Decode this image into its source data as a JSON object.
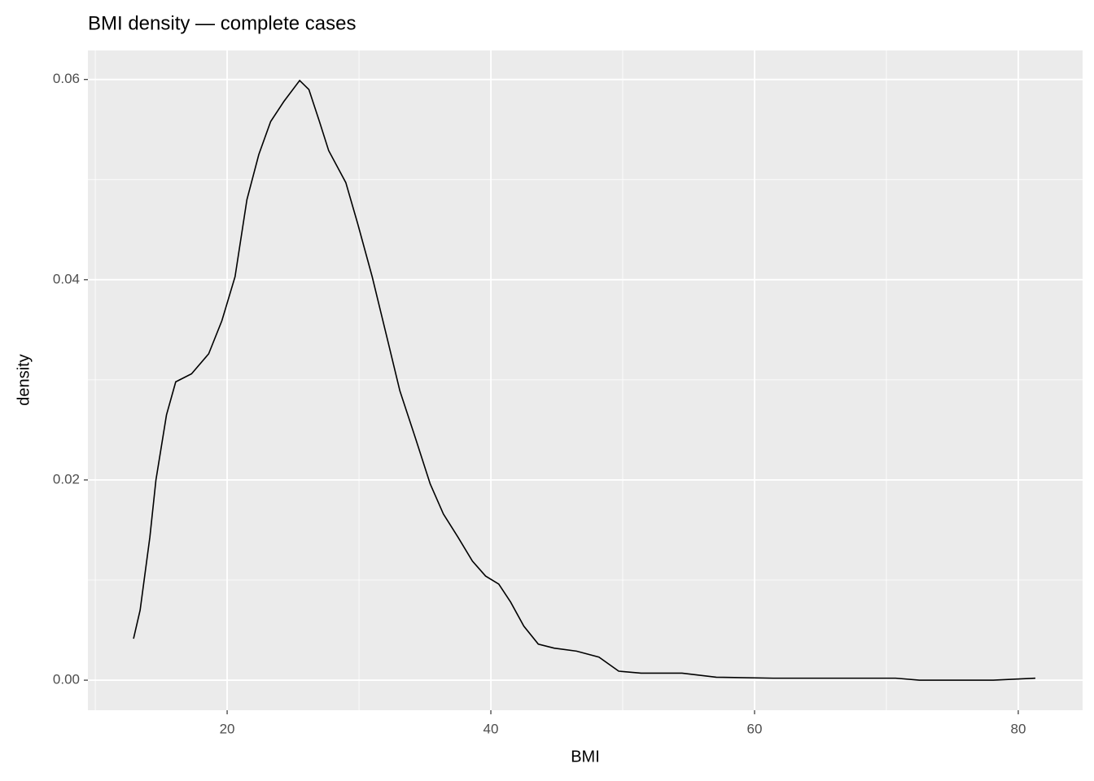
{
  "chart_data": {
    "type": "line",
    "title": "BMI density — complete cases",
    "x_label": "BMI",
    "y_label": "density",
    "x": [
      12.9,
      13.4,
      14.14,
      14.6,
      15.4,
      16.1,
      17.3,
      18.6,
      19.6,
      20.6,
      21.5,
      22.4,
      23.3,
      24.3,
      25.5,
      26.2,
      27.0,
      27.7,
      29.0,
      29.9,
      31.0,
      32.2,
      33.1,
      34.3,
      35.4,
      36.4,
      37.5,
      38.6,
      39.6,
      40.6,
      41.5,
      42.5,
      43.6,
      44.8,
      46.5,
      48.2,
      49.7,
      51.4,
      54.5,
      57.1,
      61.4,
      63.9,
      70.7,
      72.5,
      78.1,
      81.3
    ],
    "values": [
      0.00415,
      0.007,
      0.0143,
      0.02,
      0.0265,
      0.0298,
      0.0306,
      0.0326,
      0.0359,
      0.0403,
      0.048,
      0.0525,
      0.0558,
      0.0578,
      0.0599,
      0.059,
      0.0558,
      0.0529,
      0.0497,
      0.0456,
      0.0403,
      0.0338,
      0.0289,
      0.0241,
      0.0196,
      0.0166,
      0.0143,
      0.0119,
      0.0104,
      0.0096,
      0.0078,
      0.0054,
      0.0036,
      0.0032,
      0.0029,
      0.0023,
      0.0009,
      0.0007,
      0.0007,
      0.0003,
      0.0002,
      0.0002,
      0.0002,
      0.0,
      0.0,
      0.0002
    ],
    "color": "#000000",
    "xlim": [
      9.44,
      84.88
    ],
    "ylim": [
      -0.003,
      0.0629
    ],
    "xticks": [
      20,
      40,
      60,
      80
    ],
    "yticks": [
      {
        "value": 0,
        "label": "0.00"
      },
      {
        "value": 0.02,
        "label": "0.02"
      },
      {
        "value": 0.04,
        "label": "0.04"
      },
      {
        "value": 0.06,
        "label": "0.06"
      }
    ],
    "x_minor_ticks": [
      10,
      30,
      50,
      70
    ],
    "y_minor_ticks": [
      0.01,
      0.03,
      0.05
    ],
    "grid": true
  }
}
